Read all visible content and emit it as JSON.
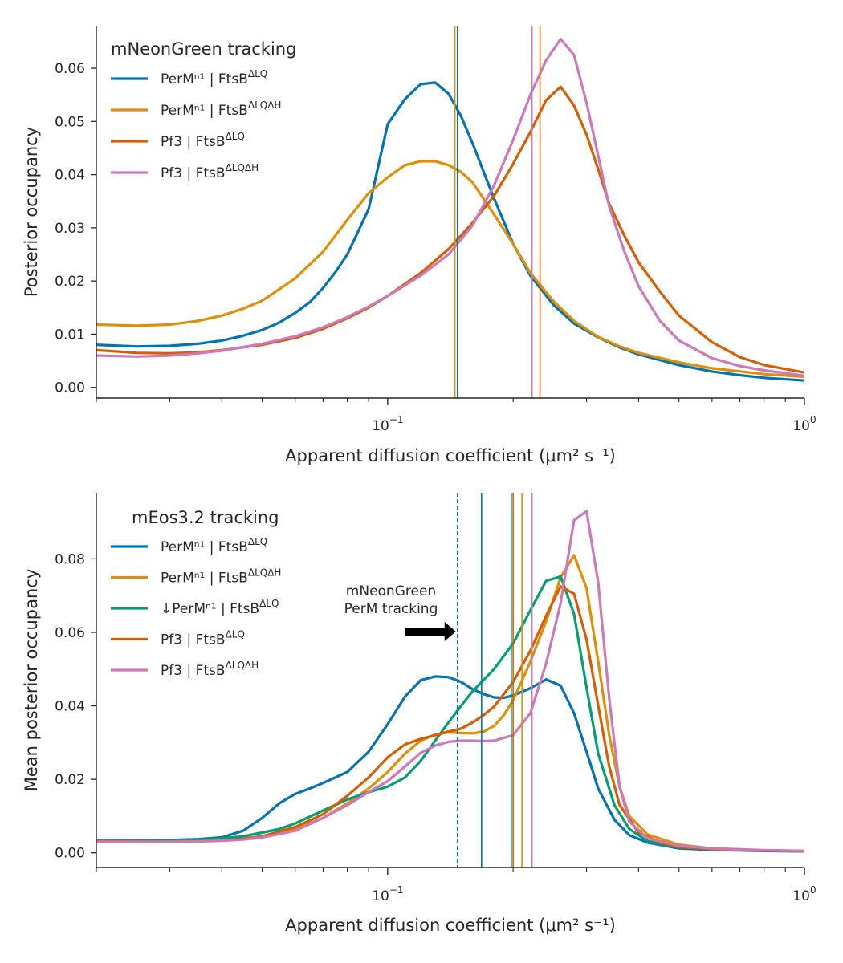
{
  "chart_data": [
    {
      "type": "line",
      "title": "",
      "xlabel": "Apparent diffusion coefficient (μm² s⁻¹)",
      "ylabel": "Posterior occupancy",
      "xscale": "log",
      "xlim": [
        0.02,
        1.0
      ],
      "ylim": [
        -0.002,
        0.068
      ],
      "xtick_labels": [
        {
          "x": 0.1,
          "base": "10",
          "exp": "−1"
        },
        {
          "x": 1.0,
          "base": "10",
          "exp": "0"
        }
      ],
      "yticks": [
        0.0,
        0.01,
        0.02,
        0.03,
        0.04,
        0.05,
        0.06
      ],
      "ytick_labels": [
        "0.00",
        "0.01",
        "0.02",
        "0.03",
        "0.04",
        "0.05",
        "0.06"
      ],
      "grid": false,
      "legend": {
        "title": "mNeonGreen tracking",
        "placement": "top-left"
      },
      "series": [
        {
          "name": "PerMⁿ¹ | FtsB",
          "name_sup": "ΔLQ",
          "color": "#0173b2",
          "x": [
            0.02,
            0.025,
            0.03,
            0.035,
            0.04,
            0.045,
            0.05,
            0.055,
            0.06,
            0.065,
            0.07,
            0.075,
            0.08,
            0.09,
            0.1,
            0.11,
            0.12,
            0.13,
            0.14,
            0.15,
            0.16,
            0.18,
            0.2,
            0.22,
            0.25,
            0.28,
            0.32,
            0.36,
            0.4,
            0.5,
            0.6,
            0.7,
            0.8,
            1.0
          ],
          "y": [
            0.008,
            0.0077,
            0.0078,
            0.0082,
            0.0088,
            0.0097,
            0.0108,
            0.0122,
            0.014,
            0.016,
            0.0187,
            0.0217,
            0.025,
            0.0335,
            0.0495,
            0.0542,
            0.057,
            0.0573,
            0.0552,
            0.051,
            0.0458,
            0.0355,
            0.027,
            0.021,
            0.0155,
            0.012,
            0.0094,
            0.0075,
            0.0062,
            0.0042,
            0.003,
            0.0023,
            0.0018,
            0.0013
          ]
        },
        {
          "name": "PerMⁿ¹ | FtsB",
          "name_sup": "ΔLQΔH",
          "color": "#de8f05",
          "x": [
            0.02,
            0.025,
            0.03,
            0.035,
            0.04,
            0.045,
            0.05,
            0.06,
            0.07,
            0.08,
            0.09,
            0.1,
            0.11,
            0.12,
            0.13,
            0.14,
            0.15,
            0.16,
            0.18,
            0.2,
            0.22,
            0.25,
            0.28,
            0.32,
            0.36,
            0.4,
            0.5,
            0.6,
            0.8,
            1.0
          ],
          "y": [
            0.0118,
            0.0116,
            0.0118,
            0.0125,
            0.0135,
            0.0148,
            0.0163,
            0.0205,
            0.0255,
            0.0315,
            0.0365,
            0.0395,
            0.0418,
            0.0425,
            0.0425,
            0.0418,
            0.0405,
            0.0385,
            0.0325,
            0.027,
            0.0215,
            0.0162,
            0.0125,
            0.0095,
            0.0077,
            0.0065,
            0.0047,
            0.0036,
            0.0025,
            0.002
          ]
        },
        {
          "name": "Pf3 | FtsB",
          "name_sup": "ΔLQ",
          "color": "#d55e00",
          "x": [
            0.02,
            0.025,
            0.03,
            0.035,
            0.04,
            0.05,
            0.06,
            0.07,
            0.08,
            0.09,
            0.1,
            0.12,
            0.14,
            0.16,
            0.18,
            0.2,
            0.22,
            0.24,
            0.26,
            0.28,
            0.3,
            0.32,
            0.34,
            0.37,
            0.4,
            0.45,
            0.5,
            0.6,
            0.7,
            0.8,
            1.0
          ],
          "y": [
            0.007,
            0.0065,
            0.0064,
            0.0066,
            0.007,
            0.008,
            0.0093,
            0.011,
            0.013,
            0.015,
            0.0172,
            0.0215,
            0.026,
            0.031,
            0.036,
            0.042,
            0.048,
            0.054,
            0.0565,
            0.053,
            0.0475,
            0.041,
            0.0345,
            0.0285,
            0.0235,
            0.018,
            0.0135,
            0.0085,
            0.0057,
            0.0042,
            0.0028
          ]
        },
        {
          "name": "Pf3 | FtsB",
          "name_sup": "ΔLQΔH",
          "color": "#cc78bc",
          "x": [
            0.02,
            0.025,
            0.03,
            0.035,
            0.04,
            0.05,
            0.06,
            0.07,
            0.08,
            0.09,
            0.1,
            0.12,
            0.14,
            0.16,
            0.18,
            0.2,
            0.22,
            0.24,
            0.26,
            0.28,
            0.3,
            0.32,
            0.34,
            0.37,
            0.4,
            0.45,
            0.5,
            0.6,
            0.7,
            0.8,
            1.0
          ],
          "y": [
            0.006,
            0.0058,
            0.006,
            0.0064,
            0.0069,
            0.0082,
            0.0096,
            0.0113,
            0.0132,
            0.0152,
            0.0172,
            0.021,
            0.025,
            0.0305,
            0.038,
            0.0465,
            0.055,
            0.0615,
            0.0655,
            0.0625,
            0.0535,
            0.0435,
            0.034,
            0.0255,
            0.019,
            0.0125,
            0.0088,
            0.0055,
            0.004,
            0.0032,
            0.0022
          ]
        }
      ],
      "vlines": [
        {
          "x": 0.145,
          "color": "#de8f05",
          "style": "solid"
        },
        {
          "x": 0.147,
          "color": "#0173b2",
          "style": "solid"
        },
        {
          "x": 0.222,
          "color": "#cc78bc",
          "style": "solid"
        },
        {
          "x": 0.232,
          "color": "#d55e00",
          "style": "solid"
        }
      ]
    },
    {
      "type": "line",
      "title": "",
      "xlabel": "Apparent diffusion coefficient (μm² s⁻¹)",
      "ylabel": "Mean posterior occupancy",
      "xscale": "log",
      "xlim": [
        0.02,
        1.0
      ],
      "ylim": [
        -0.004,
        0.098
      ],
      "xtick_labels": [
        {
          "x": 0.1,
          "base": "10",
          "exp": "−1"
        },
        {
          "x": 1.0,
          "base": "10",
          "exp": "0"
        }
      ],
      "yticks": [
        0.0,
        0.02,
        0.04,
        0.06,
        0.08
      ],
      "ytick_labels": [
        "0.00",
        "0.02",
        "0.04",
        "0.06",
        "0.08"
      ],
      "grid": false,
      "legend": {
        "title": "mEos3.2 tracking",
        "placement": "top-left"
      },
      "annotation": {
        "lines": [
          "mNeonGreen",
          "PerM tracking"
        ],
        "arrow": "right",
        "points_to_x": 0.147
      },
      "series": [
        {
          "name": "PerMⁿ¹ | FtsB",
          "name_sup": "ΔLQ",
          "color": "#0173b2",
          "x": [
            0.02,
            0.025,
            0.03,
            0.035,
            0.04,
            0.045,
            0.05,
            0.055,
            0.06,
            0.065,
            0.07,
            0.08,
            0.09,
            0.1,
            0.11,
            0.12,
            0.13,
            0.14,
            0.15,
            0.16,
            0.17,
            0.18,
            0.19,
            0.2,
            0.22,
            0.24,
            0.26,
            0.28,
            0.3,
            0.32,
            0.35,
            0.38,
            0.42,
            0.5,
            0.6,
            0.8,
            1.0
          ],
          "y": [
            0.0035,
            0.0034,
            0.0035,
            0.0037,
            0.0042,
            0.006,
            0.0095,
            0.0135,
            0.016,
            0.0175,
            0.019,
            0.022,
            0.0275,
            0.035,
            0.0425,
            0.047,
            0.048,
            0.0478,
            0.0465,
            0.0445,
            0.0432,
            0.0423,
            0.0422,
            0.0428,
            0.0448,
            0.0472,
            0.0455,
            0.038,
            0.0275,
            0.0175,
            0.009,
            0.0048,
            0.0028,
            0.0012,
            0.0008,
            0.0005,
            0.0004
          ]
        },
        {
          "name": "PerMⁿ¹ | FtsB",
          "name_sup": "ΔLQΔH",
          "color": "#de8f05",
          "x": [
            0.02,
            0.025,
            0.03,
            0.035,
            0.04,
            0.045,
            0.05,
            0.06,
            0.07,
            0.08,
            0.09,
            0.1,
            0.11,
            0.12,
            0.13,
            0.14,
            0.15,
            0.16,
            0.17,
            0.18,
            0.19,
            0.2,
            0.22,
            0.24,
            0.26,
            0.28,
            0.3,
            0.32,
            0.34,
            0.36,
            0.38,
            0.42,
            0.5,
            0.6,
            0.8,
            1.0
          ],
          "y": [
            0.0032,
            0.0032,
            0.0032,
            0.0033,
            0.0035,
            0.0039,
            0.0045,
            0.0065,
            0.0095,
            0.0135,
            0.0175,
            0.022,
            0.027,
            0.0305,
            0.0322,
            0.0328,
            0.0326,
            0.0325,
            0.033,
            0.0345,
            0.0375,
            0.0415,
            0.052,
            0.063,
            0.075,
            0.081,
            0.072,
            0.052,
            0.032,
            0.018,
            0.01,
            0.005,
            0.0022,
            0.0012,
            0.0007,
            0.0005
          ]
        },
        {
          "name": "↓PerMⁿ¹ | FtsB",
          "name_sup": "ΔLQ",
          "color": "#029e73",
          "x": [
            0.02,
            0.025,
            0.03,
            0.035,
            0.04,
            0.045,
            0.05,
            0.055,
            0.06,
            0.07,
            0.08,
            0.09,
            0.1,
            0.11,
            0.12,
            0.13,
            0.14,
            0.15,
            0.16,
            0.18,
            0.2,
            0.22,
            0.24,
            0.26,
            0.28,
            0.3,
            0.32,
            0.35,
            0.38,
            0.42,
            0.5,
            0.6,
            0.8,
            1.0
          ],
          "y": [
            0.0032,
            0.0032,
            0.0033,
            0.0035,
            0.0039,
            0.0045,
            0.0055,
            0.0065,
            0.008,
            0.0115,
            0.0145,
            0.0165,
            0.018,
            0.0205,
            0.025,
            0.0305,
            0.0355,
            0.04,
            0.044,
            0.05,
            0.057,
            0.066,
            0.074,
            0.0752,
            0.065,
            0.045,
            0.027,
            0.013,
            0.0065,
            0.0032,
            0.0015,
            0.001,
            0.0006,
            0.0004
          ]
        },
        {
          "name": "Pf3 | FtsB",
          "name_sup": "ΔLQ",
          "color": "#d55e00",
          "x": [
            0.02,
            0.025,
            0.03,
            0.035,
            0.04,
            0.045,
            0.05,
            0.06,
            0.07,
            0.08,
            0.09,
            0.1,
            0.11,
            0.12,
            0.13,
            0.14,
            0.15,
            0.16,
            0.17,
            0.18,
            0.2,
            0.22,
            0.24,
            0.26,
            0.28,
            0.3,
            0.32,
            0.34,
            0.36,
            0.4,
            0.45,
            0.5,
            0.6,
            0.8,
            1.0
          ],
          "y": [
            0.0032,
            0.0031,
            0.0031,
            0.0032,
            0.0034,
            0.0038,
            0.0045,
            0.007,
            0.0105,
            0.0155,
            0.0205,
            0.026,
            0.0295,
            0.031,
            0.032,
            0.033,
            0.0338,
            0.0355,
            0.0375,
            0.0398,
            0.0465,
            0.055,
            0.0645,
            0.0725,
            0.0705,
            0.058,
            0.04,
            0.0235,
            0.013,
            0.0055,
            0.0028,
            0.0016,
            0.001,
            0.0006,
            0.0005
          ]
        },
        {
          "name": "Pf3 | FtsB",
          "name_sup": "ΔLQΔH",
          "color": "#cc78bc",
          "x": [
            0.02,
            0.025,
            0.03,
            0.035,
            0.04,
            0.045,
            0.05,
            0.06,
            0.07,
            0.08,
            0.09,
            0.1,
            0.11,
            0.12,
            0.13,
            0.14,
            0.15,
            0.16,
            0.17,
            0.18,
            0.2,
            0.22,
            0.24,
            0.26,
            0.28,
            0.3,
            0.32,
            0.34,
            0.36,
            0.38,
            0.42,
            0.5,
            0.6,
            0.8,
            1.0
          ],
          "y": [
            0.003,
            0.003,
            0.003,
            0.0031,
            0.0033,
            0.0036,
            0.0042,
            0.006,
            0.0095,
            0.013,
            0.0165,
            0.0195,
            0.0235,
            0.0272,
            0.0292,
            0.0302,
            0.0305,
            0.0305,
            0.0304,
            0.0305,
            0.032,
            0.038,
            0.0515,
            0.068,
            0.0905,
            0.093,
            0.0735,
            0.042,
            0.018,
            0.0085,
            0.004,
            0.0019,
            0.0012,
            0.0007,
            0.0005
          ]
        }
      ],
      "vlines": [
        {
          "x": 0.147,
          "color": "#0173b2",
          "style": "dashed"
        },
        {
          "x": 0.168,
          "color": "#0173b2",
          "style": "solid"
        },
        {
          "x": 0.198,
          "color": "#029e73",
          "style": "solid"
        },
        {
          "x": 0.2,
          "color": "#d55e00",
          "style": "solid"
        },
        {
          "x": 0.21,
          "color": "#de8f05",
          "style": "solid"
        },
        {
          "x": 0.222,
          "color": "#cc78bc",
          "style": "solid"
        }
      ]
    }
  ]
}
